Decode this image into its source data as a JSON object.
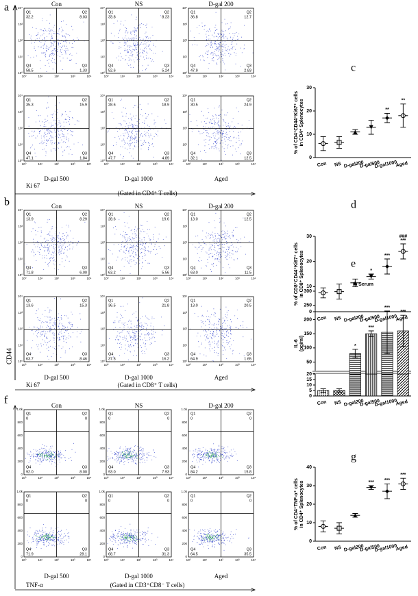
{
  "panel_labels": [
    "a",
    "b",
    "c",
    "d",
    "e",
    "f",
    "g"
  ],
  "quadrant_names": [
    "Q1",
    "Q2",
    "Q3",
    "Q4"
  ],
  "log_ticks": [
    "10⁰",
    "10¹",
    "10²",
    "10³",
    "10⁴"
  ],
  "y_axis_label": "CD44",
  "flow_panels": [
    {
      "x_label": "Ki 67",
      "gate": "(Gated in CD4⁺ T cells)",
      "y_ticks": null,
      "plots": [
        {
          "name": "Con",
          "quadrants": [
            "32.2",
            "8.03",
            "1.33",
            "58.5"
          ]
        },
        {
          "name": "NS",
          "quadrants": [
            "33.8",
            "8.23",
            "5.24",
            "52.6"
          ]
        },
        {
          "name": "D-gal 200",
          "quadrants": [
            "36.8",
            "12.7",
            "2.83",
            "47.9"
          ]
        },
        {
          "name": "D-gal 500",
          "quadrants": [
            "35.3",
            "15.9",
            "1.84",
            "47.1"
          ]
        },
        {
          "name": "D-gal 1000",
          "quadrants": [
            "28.6",
            "18.9",
            "4.89",
            "47.7"
          ]
        },
        {
          "name": "Aged",
          "quadrants": [
            "30.5",
            "24.9",
            "12.5",
            "32.1"
          ]
        }
      ]
    },
    {
      "x_label": "Ki 67",
      "gate": "(Gated in CD8⁺ T cells)",
      "y_ticks": null,
      "plots": [
        {
          "name": "Con",
          "quadrants": [
            "13.9",
            "8.29",
            "6.00",
            "71.8"
          ]
        },
        {
          "name": "NS",
          "quadrants": [
            "28.6",
            "19.6",
            "5.56",
            "63.2"
          ]
        },
        {
          "name": "D-gal 200",
          "quadrants": [
            "13.0",
            "12.5",
            "11.5",
            "63.0"
          ]
        },
        {
          "name": "D-gal 500",
          "quadrants": [
            "13.6",
            "15.3",
            "8.46",
            "63.7"
          ]
        },
        {
          "name": "D-gal 1000",
          "quadrants": [
            "36.5",
            "21.8",
            "16.2",
            "37.5"
          ]
        },
        {
          "name": "Aged",
          "quadrants": [
            "13.0",
            "20.5",
            "1.65",
            "64.9"
          ]
        }
      ]
    },
    {
      "x_label": "TNF-α",
      "gate": "(Gated in CD3⁺CD8⁻ T cells)",
      "y_ticks": [
        "0",
        "200",
        "400",
        "600",
        "800",
        "1.0k"
      ],
      "plots": [
        {
          "name": "Con",
          "quadrants": [
            "0",
            "0",
            "8.00",
            "92.0"
          ]
        },
        {
          "name": "NS",
          "quadrants": [
            "0",
            "0",
            "7.93",
            "93.0"
          ]
        },
        {
          "name": "D-gal 200",
          "quadrants": [
            "0",
            "0",
            "15.8",
            "84.2"
          ]
        },
        {
          "name": "D-gal 500",
          "quadrants": [
            "0",
            "0",
            "28.1",
            "71.9"
          ]
        },
        {
          "name": "D-gal 1000",
          "quadrants": [
            "0",
            "0",
            "31.3",
            "68.7"
          ]
        },
        {
          "name": "Aged",
          "quadrants": [
            "0",
            "0",
            "35.5",
            "64.5"
          ]
        }
      ]
    }
  ],
  "chart_data": [
    {
      "type": "dot",
      "ylabel": [
        "% of CD4⁺CD44⁺Ki67⁺ cells",
        "in CD4⁺ Splenocytes"
      ],
      "categories": [
        "Con",
        "NS",
        "D-gal200",
        "D-gal500",
        "D-gal1000",
        "Aged"
      ],
      "values": [
        6,
        6.5,
        11,
        13,
        17,
        18
      ],
      "errors": [
        3,
        2.5,
        1,
        3,
        2,
        5
      ],
      "annotations": [
        [],
        [],
        [],
        [],
        [
          "**"
        ],
        [
          "**"
        ]
      ],
      "markers": [
        "circle",
        "square",
        "triangle",
        "triangle-down",
        "diamond",
        "circle"
      ],
      "ylim": [
        0,
        30
      ],
      "yticks": [
        0,
        10,
        20,
        30
      ],
      "color": "#000000"
    },
    {
      "type": "dot",
      "ylabel": [
        "% of CD8⁺CD44⁺Ki67⁺ cells",
        "in CD8⁺ Splenocytes"
      ],
      "categories": [
        "Con",
        "NS",
        "D-gal200",
        "D-gal500",
        "D-gal1000",
        "Aged"
      ],
      "values": [
        7.5,
        8,
        11.5,
        14,
        18,
        24
      ],
      "errors": [
        2,
        3,
        1.5,
        1,
        3,
        3
      ],
      "annotations": [
        [],
        [],
        [],
        [
          "*"
        ],
        [
          "***"
        ],
        [
          "###",
          "***"
        ]
      ],
      "markers": [
        "circle",
        "square",
        "triangle",
        "triangle-down",
        "diamond",
        "circle"
      ],
      "ylim": [
        0,
        30
      ],
      "yticks": [
        0,
        10,
        20,
        30
      ],
      "color": "#000000"
    },
    {
      "type": "bar",
      "title": "In Serum",
      "ylabel": [
        "IL-6",
        "(pg/ml)"
      ],
      "categories": [
        "Con",
        "NS",
        "D-gal200",
        "D-gal500",
        "D-gal1000",
        "Aged"
      ],
      "values": [
        5,
        5,
        80,
        150,
        155,
        160
      ],
      "errors": [
        1.5,
        1.5,
        15,
        10,
        75,
        55
      ],
      "annotations": [
        [],
        [],
        [
          "*"
        ],
        [
          "***"
        ],
        [
          "***"
        ],
        [
          "***"
        ]
      ],
      "patterns": [
        "dots",
        "cross",
        "hlines",
        "vlines",
        "hlines",
        "diag"
      ],
      "ylim_segments": [
        [
          0,
          20
        ],
        [
          20,
          300
        ]
      ],
      "yticks": [
        0,
        5,
        10,
        15,
        20,
        50,
        100,
        150,
        200,
        250,
        300
      ],
      "color": "#000000"
    },
    {
      "type": "dot",
      "ylabel": [
        "% of CD4⁺TNF-α⁺ cells",
        "in CD4⁺ Splenocytes"
      ],
      "categories": [
        "Con",
        "NS",
        "D-gal200",
        "D-gal500",
        "D-gal1000",
        "Aged"
      ],
      "values": [
        8,
        7,
        14,
        29,
        27,
        31
      ],
      "errors": [
        3,
        3,
        1,
        1,
        4,
        3
      ],
      "annotations": [
        [],
        [],
        [],
        [
          "***"
        ],
        [
          "***"
        ],
        [
          "***"
        ]
      ],
      "markers": [
        "circle",
        "square",
        "triangle",
        "triangle-down",
        "diamond",
        "circle"
      ],
      "ylim": [
        0,
        40
      ],
      "yticks": [
        0,
        10,
        20,
        30,
        40
      ],
      "color": "#000000"
    }
  ]
}
